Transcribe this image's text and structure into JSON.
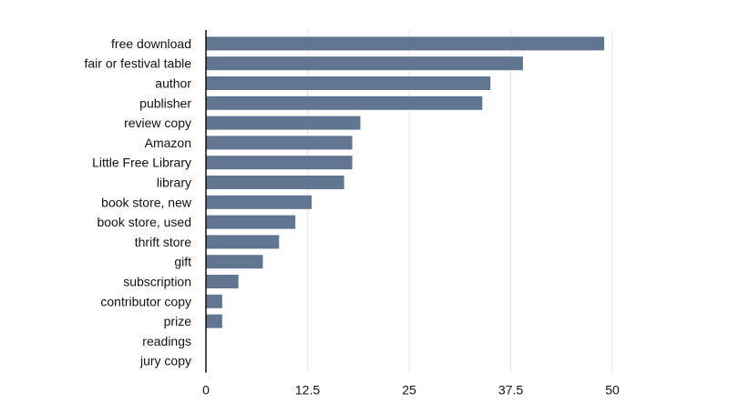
{
  "chart_data": {
    "type": "bar",
    "orientation": "horizontal",
    "title": "",
    "xlabel": "",
    "ylabel": "",
    "categories": [
      "free download",
      "fair or festival table",
      "author",
      "publisher",
      "review copy",
      "Amazon",
      "Little Free Library",
      "library",
      "book store, new",
      "book store, used",
      "thrift store",
      "gift",
      "subscription",
      "contributor copy",
      "prize",
      "readings",
      "jury copy"
    ],
    "values": [
      49,
      39,
      35,
      34,
      19,
      18,
      18,
      17,
      13,
      11,
      9,
      7,
      4,
      2,
      2,
      0,
      0
    ],
    "xlim": [
      0,
      55
    ],
    "xticks": [
      0,
      12.5,
      25,
      37.5,
      50
    ],
    "xtick_labels": [
      "0",
      "12.5",
      "25",
      "37.5",
      "50"
    ],
    "grid": "vertical",
    "legend": "none",
    "bar_color": "#5f7590"
  }
}
